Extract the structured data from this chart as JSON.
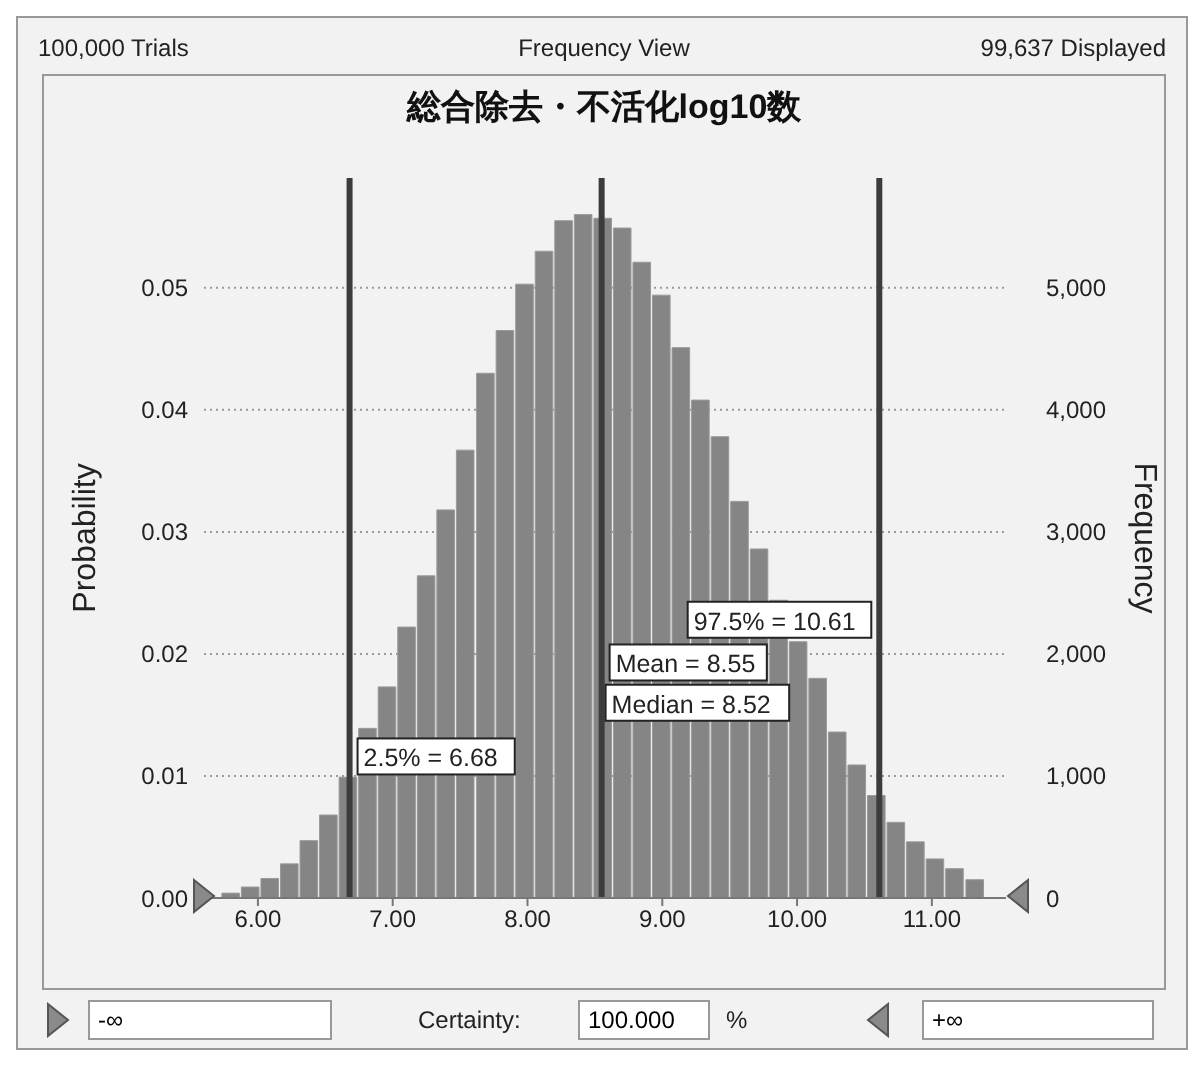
{
  "chart_data": {
    "type": "histogram",
    "title": "総合除去・不活化log10数",
    "subtitle": "Frequency View",
    "xlabel": null,
    "ylabel": "Probability",
    "y2label": "Frequency",
    "bins": [
      5.73,
      5.88,
      6.02,
      6.17,
      6.31,
      6.46,
      6.6,
      6.75,
      6.89,
      7.04,
      7.18,
      7.33,
      7.47,
      7.62,
      7.77,
      7.91,
      8.06,
      8.2,
      8.35,
      8.49,
      8.64,
      8.78,
      8.93,
      9.07,
      9.22,
      9.36,
      9.51,
      9.65,
      9.8,
      9.94,
      10.09,
      10.23,
      10.38,
      10.52,
      10.67,
      10.81,
      10.96,
      11.1,
      11.25,
      11.4
    ],
    "values": [
      0.0004,
      0.0009,
      0.0016,
      0.0028,
      0.0047,
      0.0068,
      0.0099,
      0.0139,
      0.0173,
      0.0222,
      0.0264,
      0.0318,
      0.0367,
      0.043,
      0.0465,
      0.0503,
      0.053,
      0.0555,
      0.056,
      0.0557,
      0.0549,
      0.0521,
      0.0494,
      0.0451,
      0.0408,
      0.0378,
      0.0325,
      0.0286,
      0.0244,
      0.021,
      0.018,
      0.0136,
      0.0109,
      0.0084,
      0.0062,
      0.0046,
      0.0032,
      0.0024,
      0.0015
    ],
    "color": "#858585",
    "xlim": [
      5.6,
      11.55
    ],
    "xticks": [
      {
        "value": 6,
        "label": "6.00"
      },
      {
        "value": 7,
        "label": "7.00"
      },
      {
        "value": 8,
        "label": "8.00"
      },
      {
        "value": 9,
        "label": "9.00"
      },
      {
        "value": 10,
        "label": "10.00"
      },
      {
        "value": 11,
        "label": "11.00"
      }
    ],
    "ylim": [
      0,
      0.059
    ],
    "yticks": [
      {
        "value": 0,
        "label": "0.00"
      },
      0.01,
      0.02,
      0.03,
      0.04,
      0.05
    ],
    "y2lim": [
      0,
      5900
    ],
    "y2ticks": [
      0,
      {
        "value": 1000,
        "label": "1,000"
      },
      {
        "value": 2000,
        "label": "2,000"
      },
      {
        "value": 3000,
        "label": "3,000"
      },
      {
        "value": 4000,
        "label": "4,000"
      },
      {
        "value": 5000,
        "label": "5,000"
      }
    ],
    "grid": "y",
    "ref_lines": [
      {
        "axis": "x",
        "value": 6.68,
        "color": "#3c3c3c"
      },
      {
        "axis": "x",
        "value": 8.55,
        "color": "#3c3c3c"
      },
      {
        "axis": "x",
        "value": 10.61,
        "color": "#3c3c3c"
      }
    ],
    "annotations": [
      "100,000 Trials",
      "99,637 Displayed",
      "-∞",
      "Certainty:",
      "100.000",
      "%",
      "+∞",
      {
        "text": "2.5% = 6.68",
        "x": 6.68,
        "y": 0.0116
      },
      {
        "text": "97.5% = 10.61",
        "x": 10.61,
        "y": 0.0228
      },
      {
        "text": "Mean = 8.55",
        "x": 8.55,
        "y": 0.0193
      },
      {
        "text": "Median = 8.52",
        "x": 8.52,
        "y": 0.016
      }
    ]
  }
}
